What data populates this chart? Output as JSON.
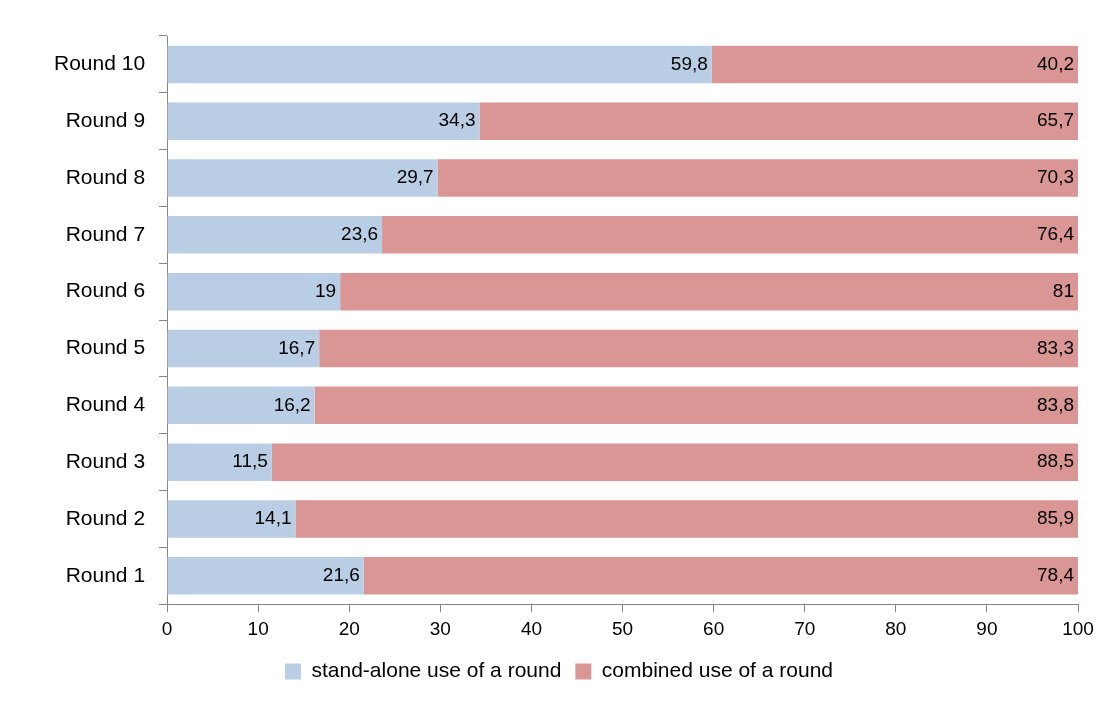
{
  "chart_data": {
    "type": "bar",
    "orientation": "horizontal",
    "stacked": true,
    "categories": [
      "Round 10",
      "Round 9",
      "Round 8",
      "Round 7",
      "Round 6",
      "Round 5",
      "Round 4",
      "Round 3",
      "Round 2",
      "Round 1"
    ],
    "series": [
      {
        "name": "stand-alone use of a round",
        "color": "#b9cde5",
        "values": [
          59.8,
          34.3,
          29.7,
          23.6,
          19,
          16.7,
          16.2,
          11.5,
          14.1,
          21.6
        ],
        "value_labels": [
          "59,8",
          "34,3",
          "29,7",
          "23,6",
          "19",
          "16,7",
          "16,2",
          "11,5",
          "14,1",
          "21,6"
        ]
      },
      {
        "name": "combined use of a round",
        "color": "#d99694",
        "values": [
          40.2,
          65.7,
          70.3,
          76.4,
          81,
          83.3,
          83.8,
          88.5,
          85.9,
          78.4
        ],
        "value_labels": [
          "40,2",
          "65,7",
          "70,3",
          "76,4",
          "81",
          "83,3",
          "83,8",
          "88,5",
          "85,9",
          "78,4"
        ]
      }
    ],
    "xlim": [
      0,
      100
    ],
    "xticks": [
      0,
      10,
      20,
      30,
      40,
      50,
      60,
      70,
      80,
      90,
      100
    ],
    "grid": false,
    "legend": "bottom"
  }
}
